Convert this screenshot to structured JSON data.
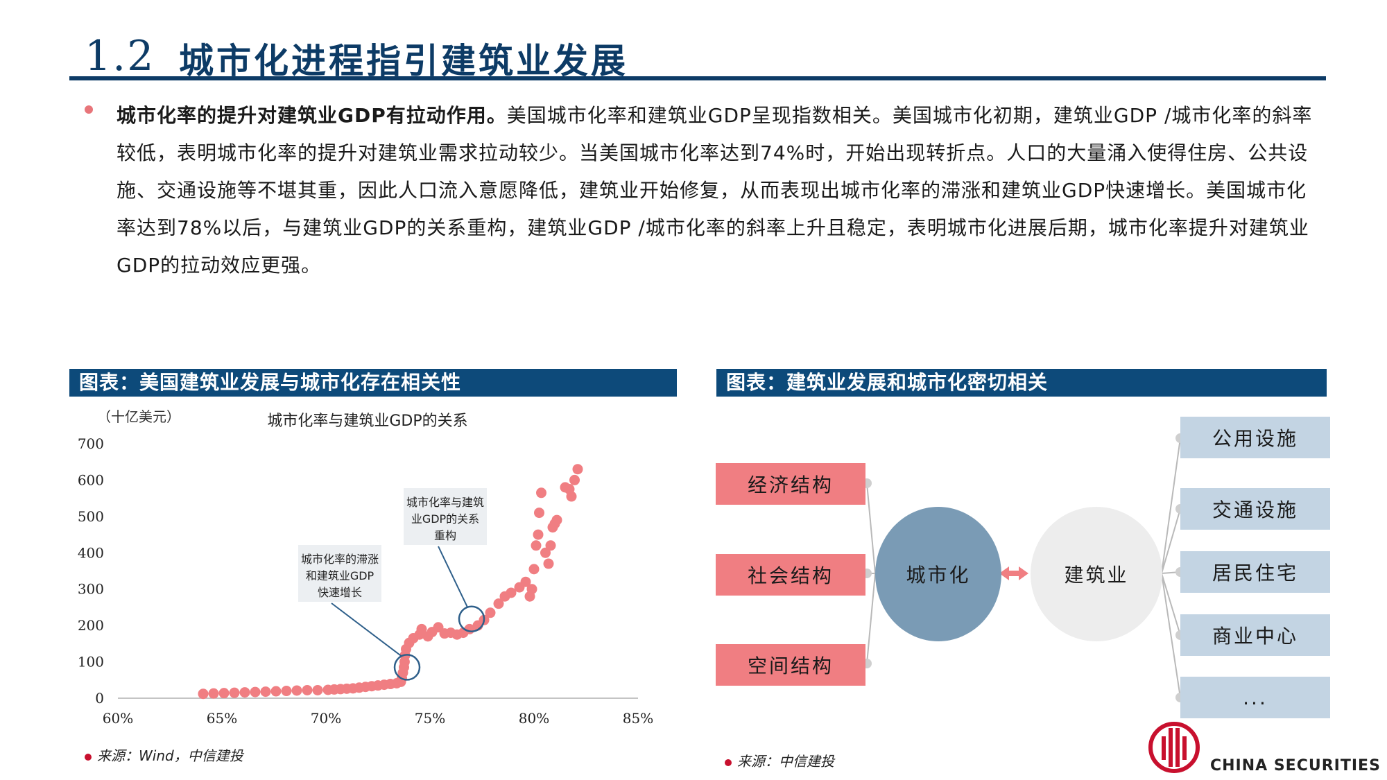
{
  "header": {
    "number": "1.2",
    "title": "城市化进程指引建筑业发展"
  },
  "intro": {
    "bold": "城市化率的提升对建筑业GDP有拉动作用。",
    "text": "美国城市化率和建筑业GDP呈现指数相关。美国城市化初期，建筑业GDP /城市化率的斜率较低，表明城市化率的提升对建筑业需求拉动较少。当美国城市化率达到74%时，开始出现转折点。人口的大量涌入使得住房、公共设施、交通设施等不堪其重，因此人口流入意愿降低，建筑业开始修复，从而表现出城市化率的滞涨和建筑业GDP快速增长。美国城市化率达到78%以后，与建筑业GDP的关系重构，建筑业GDP /城市化率的斜率上升且稳定，表明城市化进展后期，城市化率提升对建筑业GDP的拉动效应更强。"
  },
  "left_panel": {
    "header": "图表：美国建筑业发展与城市化存在相关性",
    "source": "来源：Wind，中信建投"
  },
  "right_panel": {
    "header": "图表：建筑业发展和城市化密切相关",
    "source": "来源：中信建投",
    "left_boxes": [
      "经济结构",
      "社会结构",
      "空间结构"
    ],
    "center_left": "城市化",
    "center_right": "建筑业",
    "right_boxes": [
      "公用设施",
      "交通设施",
      "居民住宅",
      "商业中心",
      "..."
    ]
  },
  "chart_data": {
    "type": "scatter",
    "title": "城市化率与建筑业GDP的关系",
    "unit_label": "（十亿美元）",
    "xlabel": "",
    "ylabel": "",
    "xlim": [
      60,
      85
    ],
    "ylim": [
      0,
      700
    ],
    "x_ticks": [
      "60%",
      "65%",
      "70%",
      "75%",
      "80%",
      "85%"
    ],
    "y_ticks": [
      "0",
      "100",
      "200",
      "300",
      "400",
      "500",
      "600",
      "700"
    ],
    "color": "#f07e82",
    "annotations": [
      {
        "text": "城市化率的滞涨和建筑业GDP快速增长",
        "x": 73.9,
        "y": 85
      },
      {
        "text": "城市化率与建筑业GDP的关系重构",
        "x": 77.0,
        "y": 218
      }
    ],
    "points": [
      [
        64.1,
        12
      ],
      [
        64.6,
        13
      ],
      [
        65.1,
        14
      ],
      [
        65.6,
        15
      ],
      [
        66.1,
        16
      ],
      [
        66.6,
        17
      ],
      [
        67.1,
        18
      ],
      [
        67.6,
        19
      ],
      [
        68.1,
        20
      ],
      [
        68.6,
        21
      ],
      [
        69.1,
        22
      ],
      [
        69.6,
        22
      ],
      [
        70.1,
        23
      ],
      [
        70.4,
        24
      ],
      [
        70.7,
        25
      ],
      [
        71.0,
        26
      ],
      [
        71.3,
        27
      ],
      [
        71.6,
        29
      ],
      [
        71.9,
        31
      ],
      [
        72.2,
        33
      ],
      [
        72.5,
        35
      ],
      [
        72.8,
        37
      ],
      [
        73.1,
        39
      ],
      [
        73.4,
        41
      ],
      [
        73.6,
        45
      ],
      [
        73.65,
        55
      ],
      [
        73.7,
        70
      ],
      [
        73.75,
        85
      ],
      [
        73.78,
        100
      ],
      [
        73.8,
        118
      ],
      [
        73.85,
        135
      ],
      [
        74.0,
        152
      ],
      [
        74.2,
        165
      ],
      [
        74.5,
        175
      ],
      [
        74.6,
        190
      ],
      [
        74.9,
        170
      ],
      [
        75.1,
        182
      ],
      [
        75.4,
        195
      ],
      [
        75.7,
        178
      ],
      [
        76.0,
        180
      ],
      [
        76.3,
        175
      ],
      [
        76.6,
        180
      ],
      [
        76.9,
        190
      ],
      [
        77.3,
        200
      ],
      [
        77.6,
        215
      ],
      [
        77.9,
        235
      ],
      [
        78.3,
        260
      ],
      [
        78.6,
        280
      ],
      [
        78.9,
        290
      ],
      [
        79.3,
        305
      ],
      [
        79.6,
        320
      ],
      [
        79.8,
        280
      ],
      [
        79.9,
        300
      ],
      [
        80.0,
        355
      ],
      [
        80.1,
        420
      ],
      [
        80.2,
        450
      ],
      [
        80.25,
        510
      ],
      [
        80.35,
        565
      ],
      [
        80.55,
        400
      ],
      [
        80.7,
        370
      ],
      [
        80.8,
        420
      ],
      [
        80.9,
        470
      ],
      [
        81.0,
        480
      ],
      [
        81.1,
        490
      ],
      [
        81.5,
        580
      ],
      [
        81.7,
        575
      ],
      [
        81.8,
        555
      ],
      [
        81.95,
        600
      ],
      [
        82.1,
        630
      ]
    ]
  }
}
